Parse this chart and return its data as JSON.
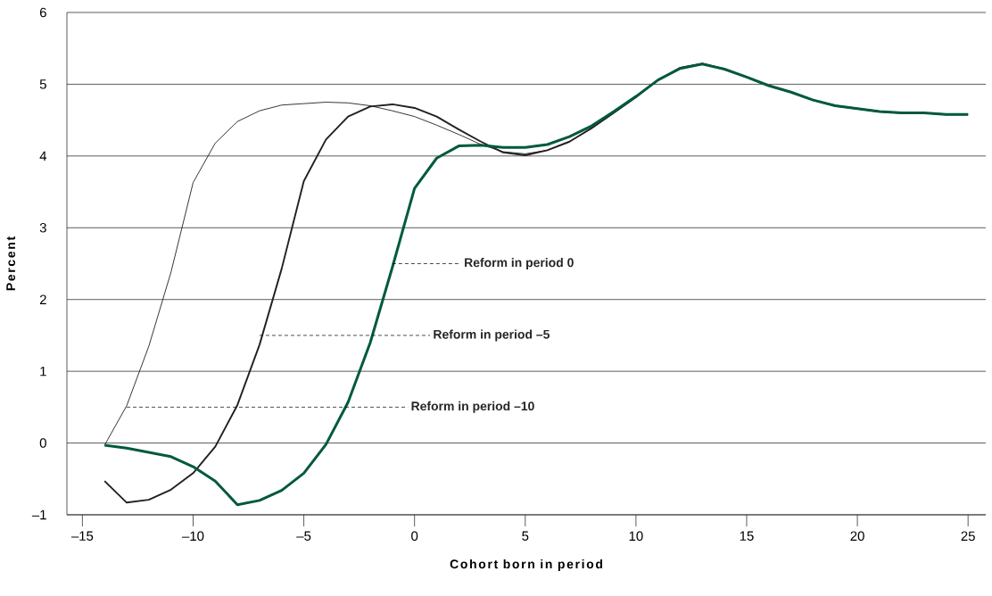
{
  "chart_data": {
    "type": "line",
    "xlabel": "Cohort born in period",
    "ylabel": "Percent",
    "x": [
      -14,
      -13,
      -12,
      -11,
      -10,
      -9,
      -8,
      -7,
      -6,
      -5,
      -4,
      -3,
      -2,
      -1,
      0,
      1,
      2,
      3,
      4,
      5,
      6,
      7,
      8,
      9,
      10,
      11,
      12,
      13,
      14,
      15,
      16,
      17,
      18,
      19,
      20,
      21,
      22,
      23,
      24,
      25
    ],
    "series": [
      {
        "color": "#231f20",
        "values": [
          -0.03,
          0.52,
          1.35,
          2.38,
          3.63,
          4.18,
          4.48,
          4.63,
          4.71,
          4.73,
          4.75,
          4.74,
          4.7,
          4.63,
          4.55,
          4.43,
          4.3,
          4.16,
          4.06,
          4.03,
          4.08,
          4.2,
          4.38,
          4.6,
          4.82,
          5.06,
          5.22,
          5.28,
          5.21,
          5.1,
          4.98,
          4.89,
          4.78,
          4.7,
          4.66,
          4.62,
          4.6,
          4.6,
          4.58,
          4.58
        ]
      },
      {
        "color": "#231f20",
        "values": [
          -0.53,
          -0.83,
          -0.79,
          -0.65,
          -0.42,
          -0.05,
          0.53,
          1.37,
          2.43,
          3.65,
          4.23,
          4.55,
          4.69,
          4.72,
          4.67,
          4.55,
          4.37,
          4.2,
          4.05,
          4.01,
          4.08,
          4.2,
          4.39,
          4.6,
          4.82,
          5.06,
          5.23,
          5.29,
          5.21,
          5.1,
          4.98,
          4.89,
          4.78,
          4.7,
          4.66,
          4.62,
          4.6,
          4.6,
          4.58,
          4.58
        ]
      },
      {
        "color": "#005a3c",
        "values": [
          -0.03,
          -0.07,
          -0.13,
          -0.19,
          -0.33,
          -0.53,
          -0.86,
          -0.8,
          -0.66,
          -0.42,
          -0.02,
          0.57,
          1.4,
          2.45,
          3.55,
          3.97,
          4.14,
          4.15,
          4.12,
          4.12,
          4.16,
          4.27,
          4.42,
          4.62,
          4.83,
          5.06,
          5.22,
          5.28,
          5.21,
          5.1,
          4.98,
          4.89,
          4.78,
          4.7,
          4.66,
          4.62,
          4.6,
          4.6,
          4.58,
          4.58
        ]
      }
    ],
    "annotations": [
      {
        "text": "Reform in period 0",
        "x": -1.0,
        "y": 2.5
      },
      {
        "text": "Reform in period –5",
        "x": -7.0,
        "y": 1.5
      },
      {
        "text": "Reform in period –10",
        "x": -13.0,
        "y": 0.5
      }
    ],
    "xlim": [
      -15.7,
      25.8
    ],
    "ylim": [
      -1,
      6
    ],
    "xticks": [
      {
        "value": -15,
        "label": "–15"
      },
      {
        "value": -10,
        "label": "–10"
      },
      {
        "value": -5,
        "label": "–5"
      },
      0,
      5,
      10,
      15,
      20,
      25
    ],
    "yticks": [
      {
        "value": -1,
        "label": "–1"
      },
      0,
      1,
      2,
      3,
      4,
      5,
      6
    ],
    "grid": "y",
    "marker": "none",
    "line_style": "solid"
  }
}
